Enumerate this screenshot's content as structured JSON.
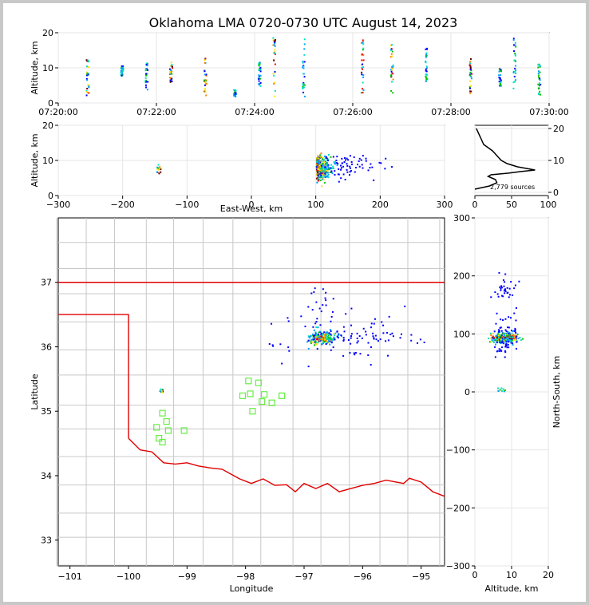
{
  "chart_data": {
    "type": "scatter",
    "title": "Oklahoma LMA 0720-0730 UTC August 14, 2023",
    "colors": {
      "state_border": "#e00000",
      "county_lines": "#c8c8c8",
      "stations": "#66ee44",
      "density": [
        "#0000ff",
        "#00a0ff",
        "#00e0c0",
        "#00c000",
        "#ffe000",
        "#ff8000",
        "#ff0000",
        "#600000"
      ]
    },
    "panels": {
      "altitude_time": {
        "ylabel": "Altitude, km",
        "ylim": [
          0,
          20
        ],
        "x_ticks": [
          "07:20:00",
          "07:22:00",
          "07:24:00",
          "07:26:00",
          "07:28:00",
          "07:30:00"
        ],
        "y_ticks": [
          "0",
          "10",
          "20"
        ],
        "time_range_min": [
          0,
          10
        ],
        "flashes": [
          {
            "t": 0.6,
            "z": [
              2,
              13
            ],
            "hot": true
          },
          {
            "t": 1.3,
            "z": [
              8,
              11
            ],
            "hot": false
          },
          {
            "t": 1.8,
            "z": [
              4,
              12
            ],
            "hot": false
          },
          {
            "t": 2.3,
            "z": [
              6,
              12
            ],
            "hot": true
          },
          {
            "t": 3.0,
            "z": [
              2,
              13
            ],
            "hot": true
          },
          {
            "t": 3.6,
            "z": [
              2,
              4
            ],
            "hot": false
          },
          {
            "t": 4.1,
            "z": [
              5,
              12
            ],
            "hot": false
          },
          {
            "t": 4.4,
            "z": [
              2,
              19
            ],
            "hot": true
          },
          {
            "t": 5.0,
            "z": [
              2,
              19
            ],
            "hot": false
          },
          {
            "t": 6.2,
            "z": [
              3,
              19
            ],
            "hot": true
          },
          {
            "t": 6.8,
            "z": [
              3,
              17
            ],
            "hot": true
          },
          {
            "t": 7.5,
            "z": [
              6,
              16
            ],
            "hot": false
          },
          {
            "t": 8.4,
            "z": [
              3,
              14
            ],
            "hot": true
          },
          {
            "t": 9.0,
            "z": [
              5,
              10
            ],
            "hot": false
          },
          {
            "t": 9.3,
            "z": [
              4,
              19
            ],
            "hot": false
          },
          {
            "t": 9.8,
            "z": [
              2,
              12
            ],
            "hot": false
          }
        ]
      },
      "altitude_eastwest": {
        "xlabel": "East-West, km",
        "ylabel": "Altitude, km",
        "xlim": [
          -300,
          300
        ],
        "ylim": [
          0,
          20
        ],
        "x_ticks": [
          "−300",
          "−200",
          "−100",
          "0",
          "100",
          "200",
          "300"
        ],
        "y_ticks": [
          "0",
          "10",
          "20"
        ]
      },
      "histogram": {
        "x_ticks": [
          "0",
          "50",
          "100"
        ],
        "y_ticks": [
          "0",
          "10",
          "20"
        ],
        "xlim": [
          0,
          100
        ],
        "ylim": [
          0,
          20
        ],
        "annotation": "2,779 sources",
        "profile": [
          [
            0,
            1
          ],
          [
            20,
            2
          ],
          [
            30,
            3
          ],
          [
            28,
            4
          ],
          [
            18,
            5
          ],
          [
            22,
            5.5
          ],
          [
            45,
            6
          ],
          [
            62,
            6.5
          ],
          [
            82,
            7
          ],
          [
            70,
            7.5
          ],
          [
            58,
            8
          ],
          [
            44,
            9
          ],
          [
            36,
            10
          ],
          [
            32,
            11
          ],
          [
            28,
            12
          ],
          [
            24,
            13
          ],
          [
            18,
            14
          ],
          [
            12,
            15
          ],
          [
            10,
            16
          ],
          [
            8,
            17
          ],
          [
            6,
            18
          ],
          [
            4,
            19
          ],
          [
            2,
            20
          ]
        ]
      },
      "plan_view": {
        "xlabel": "Longitude",
        "ylabel": "Latitude",
        "xlim": [
          -101.2,
          -94.6
        ],
        "ylim": [
          32.6,
          38.0
        ],
        "x_ticks": [
          "−101",
          "−100",
          "−99",
          "−98",
          "−97",
          "−96",
          "−95"
        ],
        "y_ticks": [
          "33",
          "34",
          "35",
          "36",
          "37"
        ],
        "stations": [
          [
            -97.95,
            35.47
          ],
          [
            -97.78,
            35.44
          ],
          [
            -98.05,
            35.24
          ],
          [
            -97.92,
            35.27
          ],
          [
            -97.68,
            35.26
          ],
          [
            -97.72,
            35.15
          ],
          [
            -97.55,
            35.13
          ],
          [
            -97.38,
            35.24
          ],
          [
            -97.88,
            35.0
          ],
          [
            -99.42,
            34.97
          ],
          [
            -99.35,
            34.84
          ],
          [
            -99.52,
            34.75
          ],
          [
            -99.32,
            34.7
          ],
          [
            -99.05,
            34.7
          ],
          [
            -99.48,
            34.58
          ],
          [
            -99.42,
            34.52
          ]
        ],
        "cluster_main": [
          -96.7,
          36.15
        ],
        "cluster_small": [
          -99.45,
          35.33
        ]
      },
      "altitude_northsouth": {
        "xlabel": "Altitude, km",
        "ylabel": "North-South, km",
        "xlim": [
          0,
          20
        ],
        "ylim": [
          -300,
          300
        ],
        "x_ticks": [
          "0",
          "10",
          "20"
        ],
        "y_ticks": [
          "−300",
          "−200",
          "−100",
          "0",
          "100",
          "200",
          "300"
        ]
      }
    }
  }
}
